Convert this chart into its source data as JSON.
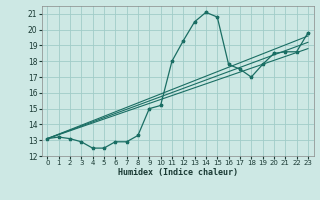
{
  "title": "",
  "xlabel": "Humidex (Indice chaleur)",
  "bg_color": "#cde8e4",
  "grid_color": "#a0ccc8",
  "line_color": "#1a6e64",
  "xlim": [
    -0.5,
    23.5
  ],
  "ylim": [
    12,
    21.5
  ],
  "xticks": [
    0,
    1,
    2,
    3,
    4,
    5,
    6,
    7,
    8,
    9,
    10,
    11,
    12,
    13,
    14,
    15,
    16,
    17,
    18,
    19,
    20,
    21,
    22,
    23
  ],
  "yticks": [
    12,
    13,
    14,
    15,
    16,
    17,
    18,
    19,
    20,
    21
  ],
  "line1_x": [
    0,
    1,
    2,
    3,
    4,
    5,
    6,
    7,
    8,
    9,
    10,
    11,
    12,
    13,
    14,
    15,
    16,
    17,
    18,
    19,
    20,
    21,
    22,
    23
  ],
  "line1_y": [
    13.1,
    13.2,
    13.1,
    12.9,
    12.5,
    12.5,
    12.9,
    12.9,
    13.3,
    15.0,
    15.2,
    18.0,
    19.3,
    20.5,
    21.1,
    20.8,
    17.8,
    17.5,
    17.0,
    17.8,
    18.5,
    18.6,
    18.6,
    19.8
  ],
  "line2_x": [
    0,
    23
  ],
  "line2_y": [
    13.1,
    18.8
  ],
  "line3_x": [
    0,
    23
  ],
  "line3_y": [
    13.1,
    19.2
  ],
  "line4_x": [
    0,
    23
  ],
  "line4_y": [
    13.1,
    19.6
  ]
}
